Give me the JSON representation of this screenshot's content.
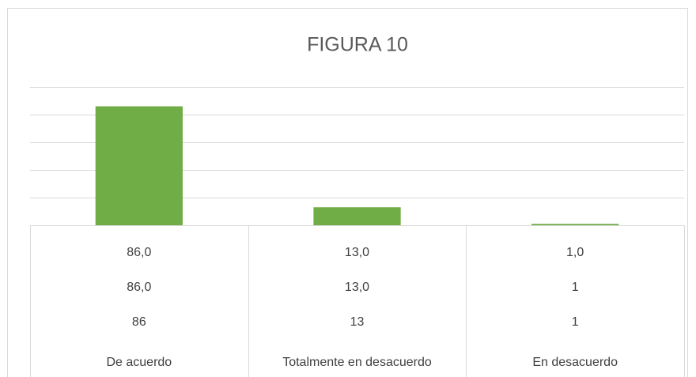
{
  "chart_data": {
    "type": "bar",
    "title": "FIGURA 10",
    "categories": [
      "De acuerdo",
      "Totalmente en desacuerdo",
      "En desacuerdo"
    ],
    "values": [
      86,
      13,
      1
    ],
    "color": "#70ad47",
    "ylim": [
      0,
      100
    ],
    "yticks": [
      0,
      20,
      40,
      60,
      80,
      100
    ],
    "grid": true,
    "data_table": {
      "rows": [
        [
          "86,0",
          "13,0",
          "1,0"
        ],
        [
          "86,0",
          "13,0",
          "1"
        ],
        [
          "86",
          "13",
          "1"
        ]
      ]
    }
  }
}
